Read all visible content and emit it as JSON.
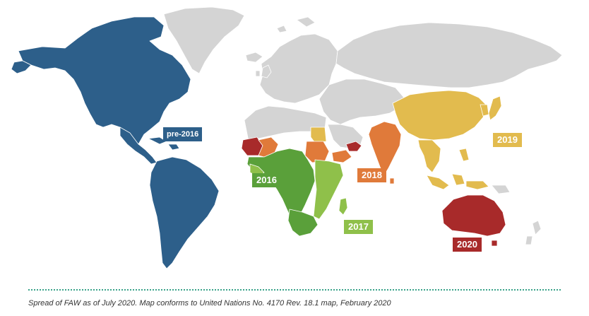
{
  "colors": {
    "pre2016": "#2d5f8a",
    "y2016": "#5aa03a",
    "y2017": "#8fc04a",
    "y2018": "#e07a3a",
    "y2019": "#e2bb4e",
    "y2020": "#a82a2a",
    "not_reported": "#d4d4d4",
    "border": "#ffffff"
  },
  "legend": {
    "pre2016": "pre-2016",
    "y2016": "2016",
    "y2017": "2017",
    "y2018": "2018",
    "y2019": "2019",
    "y2020": "2020"
  },
  "caption": "Spread of FAW as of July 2020. Map conforms to United Nations No. 4170 Rev. 18.1 map, February 2020"
}
